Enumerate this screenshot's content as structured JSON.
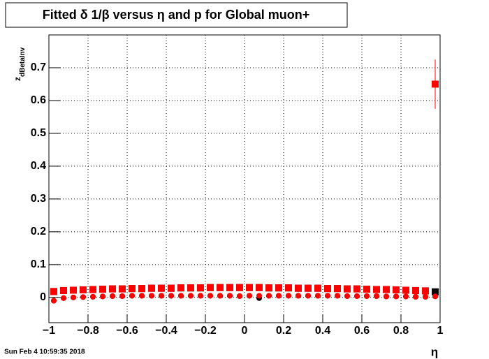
{
  "chart_data": {
    "type": "scatter",
    "title": "Fitted δ 1/β versus η and p for Global muon+",
    "xlabel": "η",
    "ylabel": "z",
    "ylabel_subscript": "dBetaInv",
    "timestamp": "Sun Feb  4 10:59:35 2018",
    "xlim": [
      -1,
      1
    ],
    "ylim": [
      -0.077,
      0.8
    ],
    "xticks": [
      {
        "value": -1,
        "label": "−1"
      },
      {
        "value": -0.8,
        "label": "−0.8"
      },
      {
        "value": -0.6,
        "label": "−0.6"
      },
      {
        "value": -0.4,
        "label": "−0.4"
      },
      {
        "value": -0.2,
        "label": "−0.2"
      },
      0,
      0.2,
      0.4,
      0.6,
      0.8,
      1
    ],
    "yticks": [
      0,
      0.1,
      0.2,
      0.3,
      0.4,
      0.5,
      0.6,
      0.7
    ],
    "grid": true,
    "x": [
      -0.975,
      -0.925,
      -0.875,
      -0.825,
      -0.775,
      -0.725,
      -0.675,
      -0.625,
      -0.575,
      -0.525,
      -0.475,
      -0.425,
      -0.375,
      -0.325,
      -0.275,
      -0.225,
      -0.175,
      -0.125,
      -0.075,
      -0.025,
      0.025,
      0.075,
      0.125,
      0.175,
      0.225,
      0.275,
      0.325,
      0.375,
      0.425,
      0.475,
      0.525,
      0.575,
      0.625,
      0.675,
      0.725,
      0.775,
      0.825,
      0.875,
      0.925,
      0.975
    ],
    "series": [
      {
        "color": "#000000",
        "marker": "square",
        "values": [
          0.018,
          0.021,
          0.022,
          0.023,
          0.024,
          0.025,
          0.026,
          0.026,
          0.027,
          0.027,
          0.028,
          0.028,
          0.028,
          0.029,
          0.029,
          0.029,
          0.03,
          0.03,
          0.03,
          0.03,
          0.03,
          0.03,
          0.029,
          0.029,
          0.029,
          0.028,
          0.028,
          0.028,
          0.027,
          0.027,
          0.026,
          0.026,
          0.025,
          0.024,
          0.024,
          0.023,
          0.022,
          0.021,
          0.02,
          0.017
        ]
      },
      {
        "color": "#000000",
        "marker": "circle",
        "values": [
          -0.01,
          -0.002,
          0,
          0.001,
          0.002,
          0.003,
          0.004,
          0.004,
          0.005,
          0.005,
          0.005,
          0.005,
          0.005,
          0.005,
          0.005,
          0.005,
          0.005,
          0.005,
          0.005,
          0.004,
          0.005,
          -0.002,
          0.005,
          0.005,
          0.005,
          0.005,
          0.005,
          0.005,
          0.005,
          0.005,
          0.004,
          0.004,
          0.004,
          0.004,
          0.003,
          0.003,
          0.003,
          0.002,
          0.002,
          0.014
        ]
      },
      {
        "color": "#ff0000",
        "marker": "square",
        "values": [
          0.018,
          0.021,
          0.022,
          0.023,
          0.024,
          0.025,
          0.026,
          0.026,
          0.027,
          0.027,
          0.028,
          0.028,
          0.028,
          0.029,
          0.029,
          0.029,
          0.03,
          0.03,
          0.03,
          0.03,
          0.03,
          0.03,
          0.029,
          0.029,
          0.029,
          0.028,
          0.028,
          0.028,
          0.027,
          0.027,
          0.026,
          0.026,
          0.025,
          0.024,
          0.024,
          0.023,
          0.022,
          0.021,
          0.02,
          0.65
        ],
        "errors": [
          0.001,
          0.001,
          0.001,
          0.001,
          0.001,
          0.001,
          0.001,
          0.001,
          0.001,
          0.001,
          0.001,
          0.001,
          0.001,
          0.001,
          0.001,
          0.001,
          0.001,
          0.001,
          0.001,
          0.001,
          0.001,
          0.001,
          0.001,
          0.001,
          0.001,
          0.001,
          0.001,
          0.001,
          0.001,
          0.001,
          0.001,
          0.001,
          0.001,
          0.001,
          0.001,
          0.001,
          0.001,
          0.001,
          0.001,
          0.075
        ]
      },
      {
        "color": "#ff0000",
        "marker": "circle",
        "values": [
          -0.01,
          -0.002,
          0,
          0.001,
          0.002,
          0.003,
          0.004,
          0.004,
          0.005,
          0.005,
          0.005,
          0.005,
          0.005,
          0.005,
          0.005,
          0.005,
          0.005,
          0.005,
          0.005,
          0.004,
          0.005,
          0.005,
          0.005,
          0.005,
          0.005,
          0.005,
          0.005,
          0.005,
          0.005,
          0.005,
          0.004,
          0.004,
          0.004,
          0.004,
          0.003,
          0.003,
          0.003,
          0.002,
          0.002,
          0.003
        ]
      }
    ]
  }
}
